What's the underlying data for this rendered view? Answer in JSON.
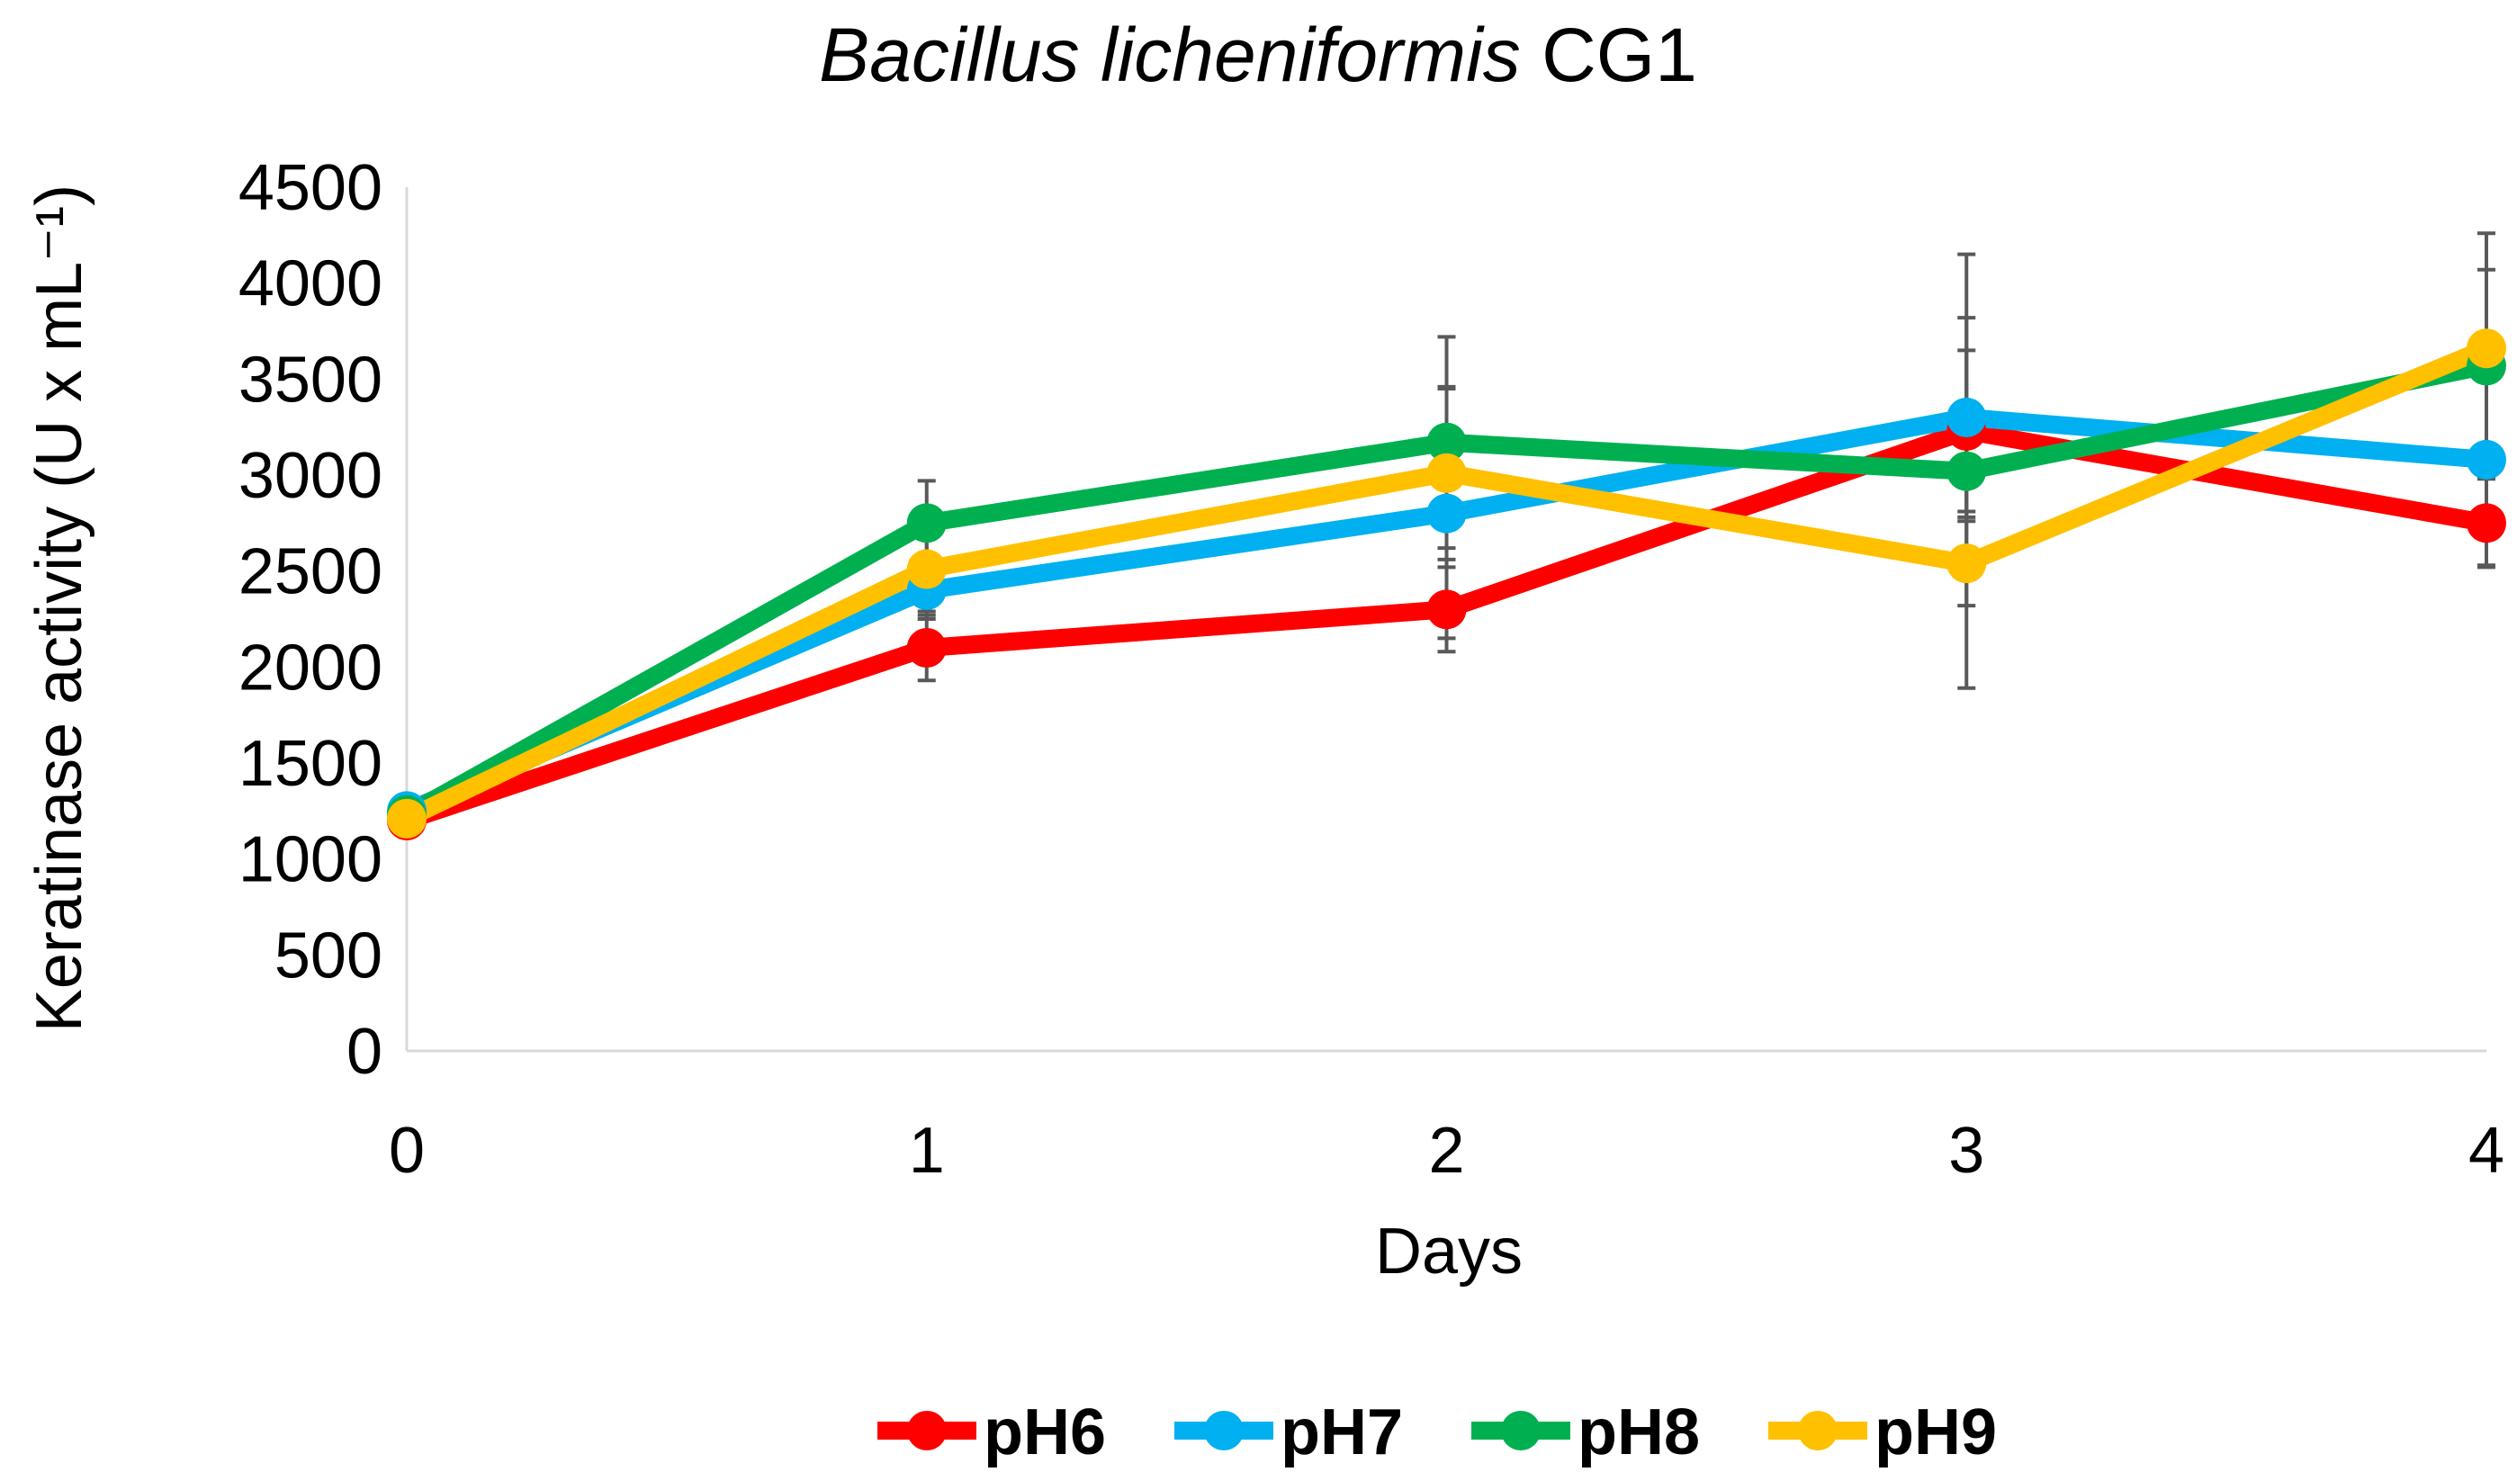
{
  "chart_data": {
    "type": "line",
    "title_italic": "Bacillus licheniformis",
    "title_rest": " CG1",
    "xlabel": "Days",
    "ylabel": "Keratinase activity (U x mL⁻¹)",
    "x": [
      0,
      1,
      2,
      3,
      4
    ],
    "xlim": [
      0,
      4
    ],
    "ylim": [
      0,
      4500
    ],
    "yticks": [
      0,
      500,
      1000,
      1500,
      2000,
      2500,
      3000,
      3500,
      4000,
      4500
    ],
    "grid": false,
    "legend_position": "bottom",
    "series": [
      {
        "name": "pH6",
        "color": "#FF0000",
        "values": [
          1200,
          2100,
          2300,
          3230,
          2750
        ],
        "error": [
          0,
          170,
          220,
          420,
          230
        ]
      },
      {
        "name": "pH7",
        "color": "#00B0F0",
        "values": [
          1250,
          2400,
          2800,
          3300,
          3080
        ],
        "error": [
          0,
          150,
          650,
          520,
          550
        ]
      },
      {
        "name": "pH8",
        "color": "#00B050",
        "values": [
          1230,
          2750,
          3170,
          3020,
          3570
        ],
        "error": [
          0,
          220,
          550,
          1130,
          500
        ]
      },
      {
        "name": "pH9",
        "color": "#FFC000",
        "values": [
          1210,
          2510,
          3010,
          2540,
          3660
        ],
        "error": [
          0,
          220,
          450,
          220,
          600
        ]
      }
    ]
  }
}
